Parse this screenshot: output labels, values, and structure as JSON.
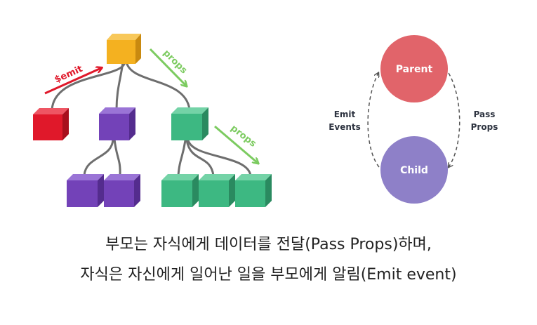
{
  "tree": {
    "emit_label": "$emit",
    "props_label_top": "props",
    "props_label_right": "props",
    "colors": {
      "root": "#F4B120",
      "red": "#E0182A",
      "purple": "#7342B8",
      "green": "#3DB882",
      "red_arrow": "#E0182A",
      "green_arrow": "#7CCB60",
      "lines": "#6E6E6E"
    }
  },
  "cycle": {
    "parent_label": "Parent",
    "child_label": "Child",
    "left_label_line1": "Emit",
    "left_label_line2": "Events",
    "right_label_line1": "Pass",
    "right_label_line2": "Props",
    "colors": {
      "parent": "#E1646A",
      "child": "#8E80C8",
      "text": "#2D3340"
    }
  },
  "caption": {
    "line1": "부모는 자식에게 데이터를 전달(Pass Props)하며,",
    "line2": "자식은 자신에게 일어난 일을 부모에게 알림(Emit event)"
  }
}
